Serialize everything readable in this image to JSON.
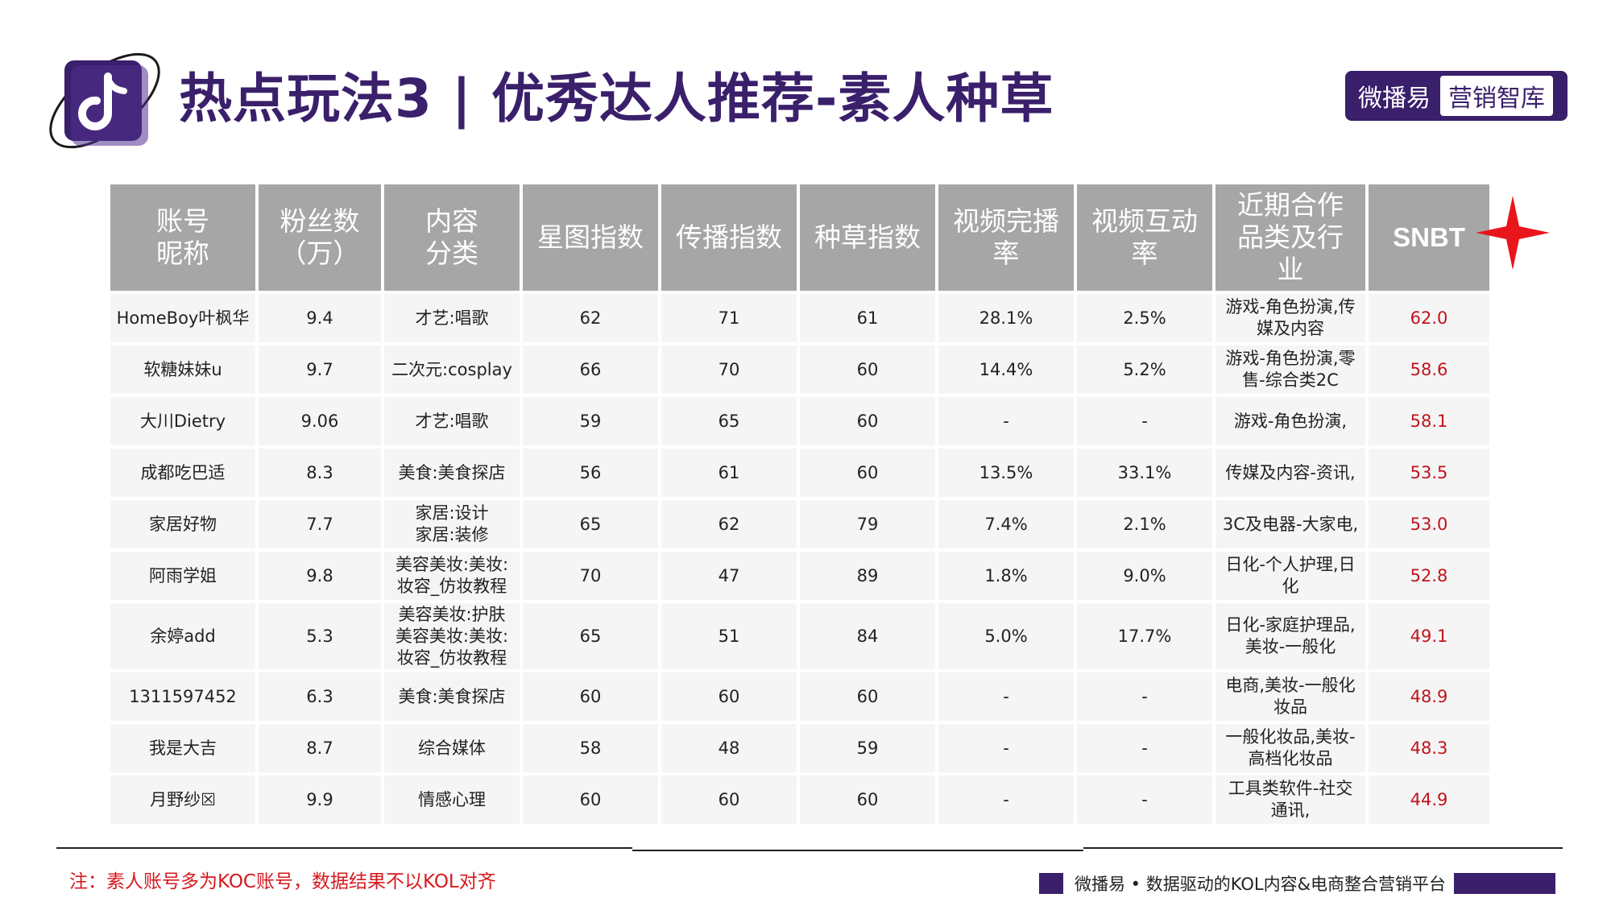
{
  "header": {
    "title": "热点玩法3 | 优秀达人推荐-素人种草",
    "brand_left": "微播易",
    "brand_right": "营销智库"
  },
  "table": {
    "headers": [
      [
        "账号",
        "昵称"
      ],
      [
        "粉丝数",
        "（万）"
      ],
      [
        "内容",
        "分类"
      ],
      [
        "星图指数"
      ],
      [
        "传播指数"
      ],
      [
        "种草指数"
      ],
      [
        "视频完播",
        "率"
      ],
      [
        "视频互动",
        "率"
      ],
      [
        "近期合作",
        "品类及行",
        "业"
      ],
      [
        "SNBT"
      ]
    ],
    "rows": [
      {
        "name": "HomeBoy叶枫华",
        "fans": "9.4",
        "category": [
          "才艺:唱歌"
        ],
        "star": "62",
        "spread": "71",
        "grass": "61",
        "completion": "28.1%",
        "interaction": "2.5%",
        "coop": [
          "游戏-角色扮演,传",
          "媒及内容"
        ],
        "snbt": "62.0"
      },
      {
        "name": "软糖妹妹u",
        "fans": "9.7",
        "category": [
          "二次元:cosplay"
        ],
        "star": "66",
        "spread": "70",
        "grass": "60",
        "completion": "14.4%",
        "interaction": "5.2%",
        "coop": [
          "游戏-角色扮演,零",
          "售-综合类2C"
        ],
        "snbt": "58.6"
      },
      {
        "name": "大川Dietry",
        "fans": "9.06",
        "category": [
          "才艺:唱歌"
        ],
        "star": "59",
        "spread": "65",
        "grass": "60",
        "completion": "-",
        "interaction": "-",
        "coop": [
          "游戏-角色扮演,"
        ],
        "snbt": "58.1"
      },
      {
        "name": "成都吃巴适",
        "fans": "8.3",
        "category": [
          "美食:美食探店"
        ],
        "star": "56",
        "spread": "61",
        "grass": "60",
        "completion": "13.5%",
        "interaction": "33.1%",
        "coop": [
          "传媒及内容-资讯,"
        ],
        "snbt": "53.5"
      },
      {
        "name": "家居好物",
        "fans": "7.7",
        "category": [
          "家居:设计",
          "家居:装修"
        ],
        "star": "65",
        "spread": "62",
        "grass": "79",
        "completion": "7.4%",
        "interaction": "2.1%",
        "coop": [
          "3C及电器-大家电,"
        ],
        "snbt": "53.0"
      },
      {
        "name": "阿雨学姐",
        "fans": "9.8",
        "category": [
          "美容美妆:美妆:",
          "妆容_仿妆教程"
        ],
        "star": "70",
        "spread": "47",
        "grass": "89",
        "completion": "1.8%",
        "interaction": "9.0%",
        "coop": [
          "日化-个人护理,日",
          "化"
        ],
        "snbt": "52.8"
      },
      {
        "name": "余婷add",
        "fans": "5.3",
        "category": [
          "美容美妆:护肤",
          "美容美妆:美妆:",
          "妆容_仿妆教程"
        ],
        "star": "65",
        "spread": "51",
        "grass": "84",
        "completion": "5.0%",
        "interaction": "17.7%",
        "coop": [
          "日化-家庭护理品,",
          "美妆-一般化"
        ],
        "snbt": "49.1"
      },
      {
        "name": "1311597452",
        "fans": "6.3",
        "category": [
          "美食:美食探店"
        ],
        "star": "60",
        "spread": "60",
        "grass": "60",
        "completion": "-",
        "interaction": "-",
        "coop": [
          "电商,美妆-一般化",
          "妆品"
        ],
        "snbt": "48.9"
      },
      {
        "name": "我是大吉",
        "fans": "8.7",
        "category": [
          "综合媒体"
        ],
        "star": "58",
        "spread": "48",
        "grass": "59",
        "completion": "-",
        "interaction": "-",
        "coop": [
          "一般化妆品,美妆-",
          "高档化妆品"
        ],
        "snbt": "48.3"
      },
      {
        "name": "月野纱☒",
        "fans": "9.9",
        "category": [
          "情感心理"
        ],
        "star": "60",
        "spread": "60",
        "grass": "60",
        "completion": "-",
        "interaction": "-",
        "coop": [
          "工具类软件-社交",
          "通讯,"
        ],
        "snbt": "44.9"
      }
    ]
  },
  "note": "注：素人账号多为KOC账号，数据结果不以KOL对齐",
  "footer_text": "微播易 • 数据驱动的KOL内容&电商整合营销平台",
  "colors": {
    "brand": "#3a1f6b",
    "header_bg": "#a6a6a6",
    "snbt": "#c0141c",
    "note": "#d7191f",
    "star": "#e8151b"
  },
  "icons": [
    "douyin-logo-icon",
    "red-star-icon"
  ]
}
